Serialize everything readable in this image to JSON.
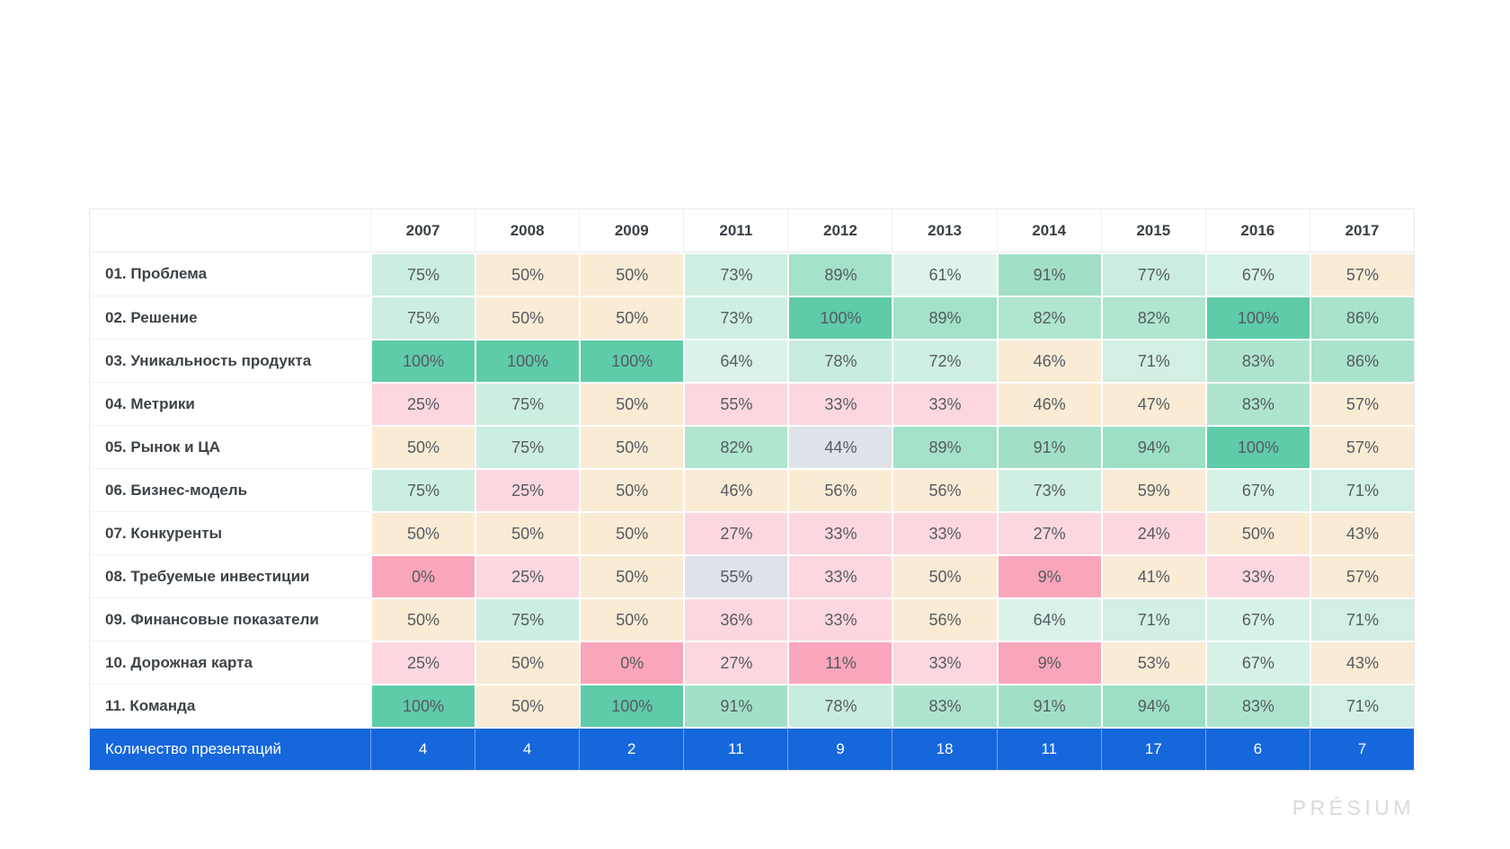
{
  "page": {
    "background": "#FFFFFF"
  },
  "logo": {
    "text": "PRÉSIUM",
    "color": "#D8DADC"
  },
  "chart_data": {
    "type": "heatmap",
    "title": "",
    "unit": "%",
    "columns": [
      "2007",
      "2008",
      "2009",
      "2011",
      "2012",
      "2013",
      "2014",
      "2015",
      "2016",
      "2017"
    ],
    "rows": [
      {
        "label": "01. Проблема",
        "values": [
          75,
          50,
          50,
          73,
          89,
          61,
          91,
          77,
          67,
          57
        ]
      },
      {
        "label": "02. Решение",
        "values": [
          75,
          50,
          50,
          73,
          100,
          89,
          82,
          82,
          100,
          86
        ]
      },
      {
        "label": "03. Уникальность продукта",
        "values": [
          100,
          100,
          100,
          64,
          78,
          72,
          46,
          71,
          83,
          86
        ]
      },
      {
        "label": "04. Метрики",
        "values": [
          25,
          75,
          50,
          55,
          33,
          33,
          46,
          47,
          83,
          57
        ]
      },
      {
        "label": "05. Рынок и ЦА",
        "values": [
          50,
          75,
          50,
          82,
          44,
          89,
          91,
          94,
          100,
          57
        ]
      },
      {
        "label": "06. Бизнес-модель",
        "values": [
          75,
          25,
          50,
          46,
          56,
          56,
          73,
          59,
          67,
          71
        ]
      },
      {
        "label": "07. Конкуренты",
        "values": [
          50,
          50,
          50,
          27,
          33,
          33,
          27,
          24,
          50,
          43
        ]
      },
      {
        "label": "08. Требуемые инвестиции",
        "values": [
          0,
          25,
          50,
          55,
          33,
          50,
          9,
          41,
          33,
          57
        ]
      },
      {
        "label": "09. Финансовые показатели",
        "values": [
          50,
          75,
          50,
          36,
          33,
          56,
          64,
          71,
          67,
          71
        ]
      },
      {
        "label": "10. Дорожная карта",
        "values": [
          25,
          50,
          0,
          27,
          11,
          33,
          9,
          53,
          67,
          43
        ]
      },
      {
        "label": "11. Команда",
        "values": [
          100,
          50,
          100,
          91,
          78,
          83,
          91,
          94,
          83,
          71
        ]
      }
    ],
    "footer": {
      "label": "Количество презентаций",
      "values": [
        4,
        4,
        2,
        11,
        9,
        18,
        11,
        17,
        6,
        7
      ],
      "background": "#1667DB",
      "text_color": "#FFFFFF"
    },
    "palette": {
      "teal_100": "#5FCBA8",
      "green_hi_start": "#B3E6D1",
      "green_hi_end": "#9ADEC3",
      "green_lo_start": "#DFF4EC",
      "green_lo_end": "#C7ECDD",
      "beige_mid": "#FAEBD5",
      "pink_light": "#FCD7E0",
      "pink_strong": "#F9A6BA",
      "gray_neutral": "#DDE3E8",
      "cell_text": "#555B61",
      "label_text": "#3D4349",
      "header_text": "#3A4047"
    },
    "color_overrides": [
      {
        "row": 3,
        "col": 3,
        "color_key": "pink_light"
      },
      {
        "row": 4,
        "col": 4,
        "color_key": "gray_neutral"
      },
      {
        "row": 7,
        "col": 3,
        "color_key": "gray_neutral"
      }
    ],
    "legend": null,
    "layout": {
      "grid": "table-heatmap",
      "totals_row_position": "bottom"
    }
  }
}
